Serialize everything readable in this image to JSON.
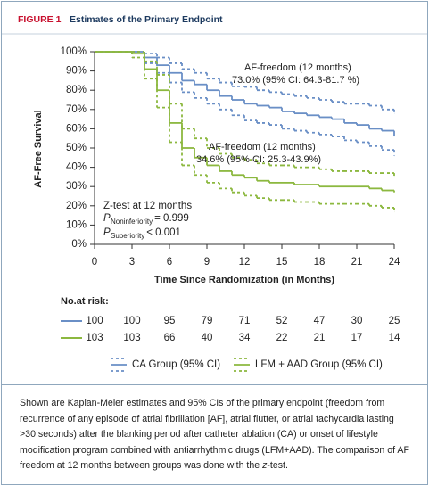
{
  "header": {
    "label": "FIGURE 1",
    "title": "Estimates of the Primary Endpoint"
  },
  "chart_data": {
    "type": "line",
    "step": true,
    "y_label": "AF-Free Survival",
    "x_label": "Time Since Randomization (in Months)",
    "x": [
      0,
      1,
      2,
      3,
      4,
      5,
      6,
      7,
      8,
      9,
      10,
      11,
      12,
      13,
      14,
      15,
      16,
      17,
      18,
      19,
      20,
      21,
      22,
      23,
      24
    ],
    "xlim": [
      0,
      24
    ],
    "xticks": [
      0,
      3,
      6,
      9,
      12,
      15,
      18,
      21,
      24
    ],
    "ylim": [
      0,
      100
    ],
    "yticks": [
      {
        "value": 0,
        "label": "0%"
      },
      {
        "value": 10,
        "label": "10%"
      },
      {
        "value": 20,
        "label": "20%"
      },
      {
        "value": 30,
        "label": "30%"
      },
      {
        "value": 40,
        "label": "40%"
      },
      {
        "value": 50,
        "label": "50%"
      },
      {
        "value": 60,
        "label": "60%"
      },
      {
        "value": 70,
        "label": "70%"
      },
      {
        "value": 80,
        "label": "80%"
      },
      {
        "value": 90,
        "label": "90%"
      },
      {
        "value": 100,
        "label": "100%"
      }
    ],
    "series": [
      {
        "name": "CA Group (95% CI)",
        "color": "#6a8fc6",
        "values": [
          100,
          100,
          100,
          100,
          97,
          93,
          89,
          85,
          83,
          80,
          77,
          75,
          73,
          72,
          71,
          69,
          68,
          67,
          66,
          65,
          63,
          62,
          60,
          59,
          56
        ],
        "ci_lower": [
          100,
          100,
          100,
          100,
          94,
          89,
          84,
          79,
          76,
          73,
          70,
          67,
          64.3,
          63,
          62,
          60,
          59,
          58,
          57,
          56,
          54,
          53,
          51,
          49,
          46
        ],
        "ci_upper": [
          100,
          100,
          100,
          100,
          99,
          97,
          94,
          91,
          89,
          86,
          84,
          82,
          81.7,
          80,
          79,
          78,
          77,
          76,
          75,
          74,
          73,
          73,
          72,
          70,
          68
        ]
      },
      {
        "name": "LFM + AAD Group (95% CI)",
        "color": "#8cb83f",
        "values": [
          100,
          100,
          100,
          99,
          91,
          80,
          63,
          50,
          45,
          41,
          38,
          36,
          34.6,
          33,
          32,
          32,
          31,
          31,
          30,
          30,
          30,
          30,
          29,
          28,
          27
        ],
        "ci_lower": [
          100,
          100,
          100,
          97,
          86,
          71,
          53,
          41,
          36,
          32,
          29,
          27,
          25.3,
          24,
          23,
          23,
          22,
          22,
          21,
          21,
          21,
          21,
          20,
          19,
          17
        ],
        "ci_upper": [
          100,
          100,
          100,
          100,
          95,
          88,
          73,
          60,
          55,
          50,
          47,
          45,
          43.9,
          42,
          41,
          41,
          40,
          40,
          39,
          38,
          38,
          38,
          37,
          37,
          35
        ]
      }
    ],
    "annotations": [
      {
        "lines": [
          "AF-freedom (12 months)",
          "73.0% (95% CI: 64.3-81.7 %)"
        ]
      },
      {
        "lines": [
          "AF-freedom (12 months)",
          "34.6% (95% CI: 25.3-43.9%)"
        ]
      }
    ],
    "test": {
      "title": "Z-test at 12 months",
      "rows": [
        {
          "symbol": "P",
          "sub": "Noninferiority",
          "text": "= 0.999"
        },
        {
          "symbol": "P",
          "sub": "Superiority",
          "text": "< 0.001"
        }
      ]
    },
    "risk_table": {
      "title": "No.at risk:",
      "x": [
        0,
        3,
        6,
        9,
        12,
        15,
        18,
        21,
        24
      ],
      "rows": [
        [
          100,
          100,
          95,
          79,
          71,
          52,
          47,
          30,
          25
        ],
        [
          103,
          103,
          66,
          40,
          34,
          22,
          21,
          17,
          14
        ]
      ]
    }
  },
  "caption": [
    "Shown are Kaplan-Meier estimates and 95% CIs of the primary endpoint (freedom from recurrence of any episode of atrial fibrillation [AF], atrial flutter, or atrial tachycardia lasting >30 seconds) after the blanking period after catheter ablation (CA) or onset of lifestyle modification program combined with antiarrhythmic drugs (LFM+AAD). The comparison of AF freedom at 12 months between groups was done with the ",
    "z",
    "-test."
  ]
}
